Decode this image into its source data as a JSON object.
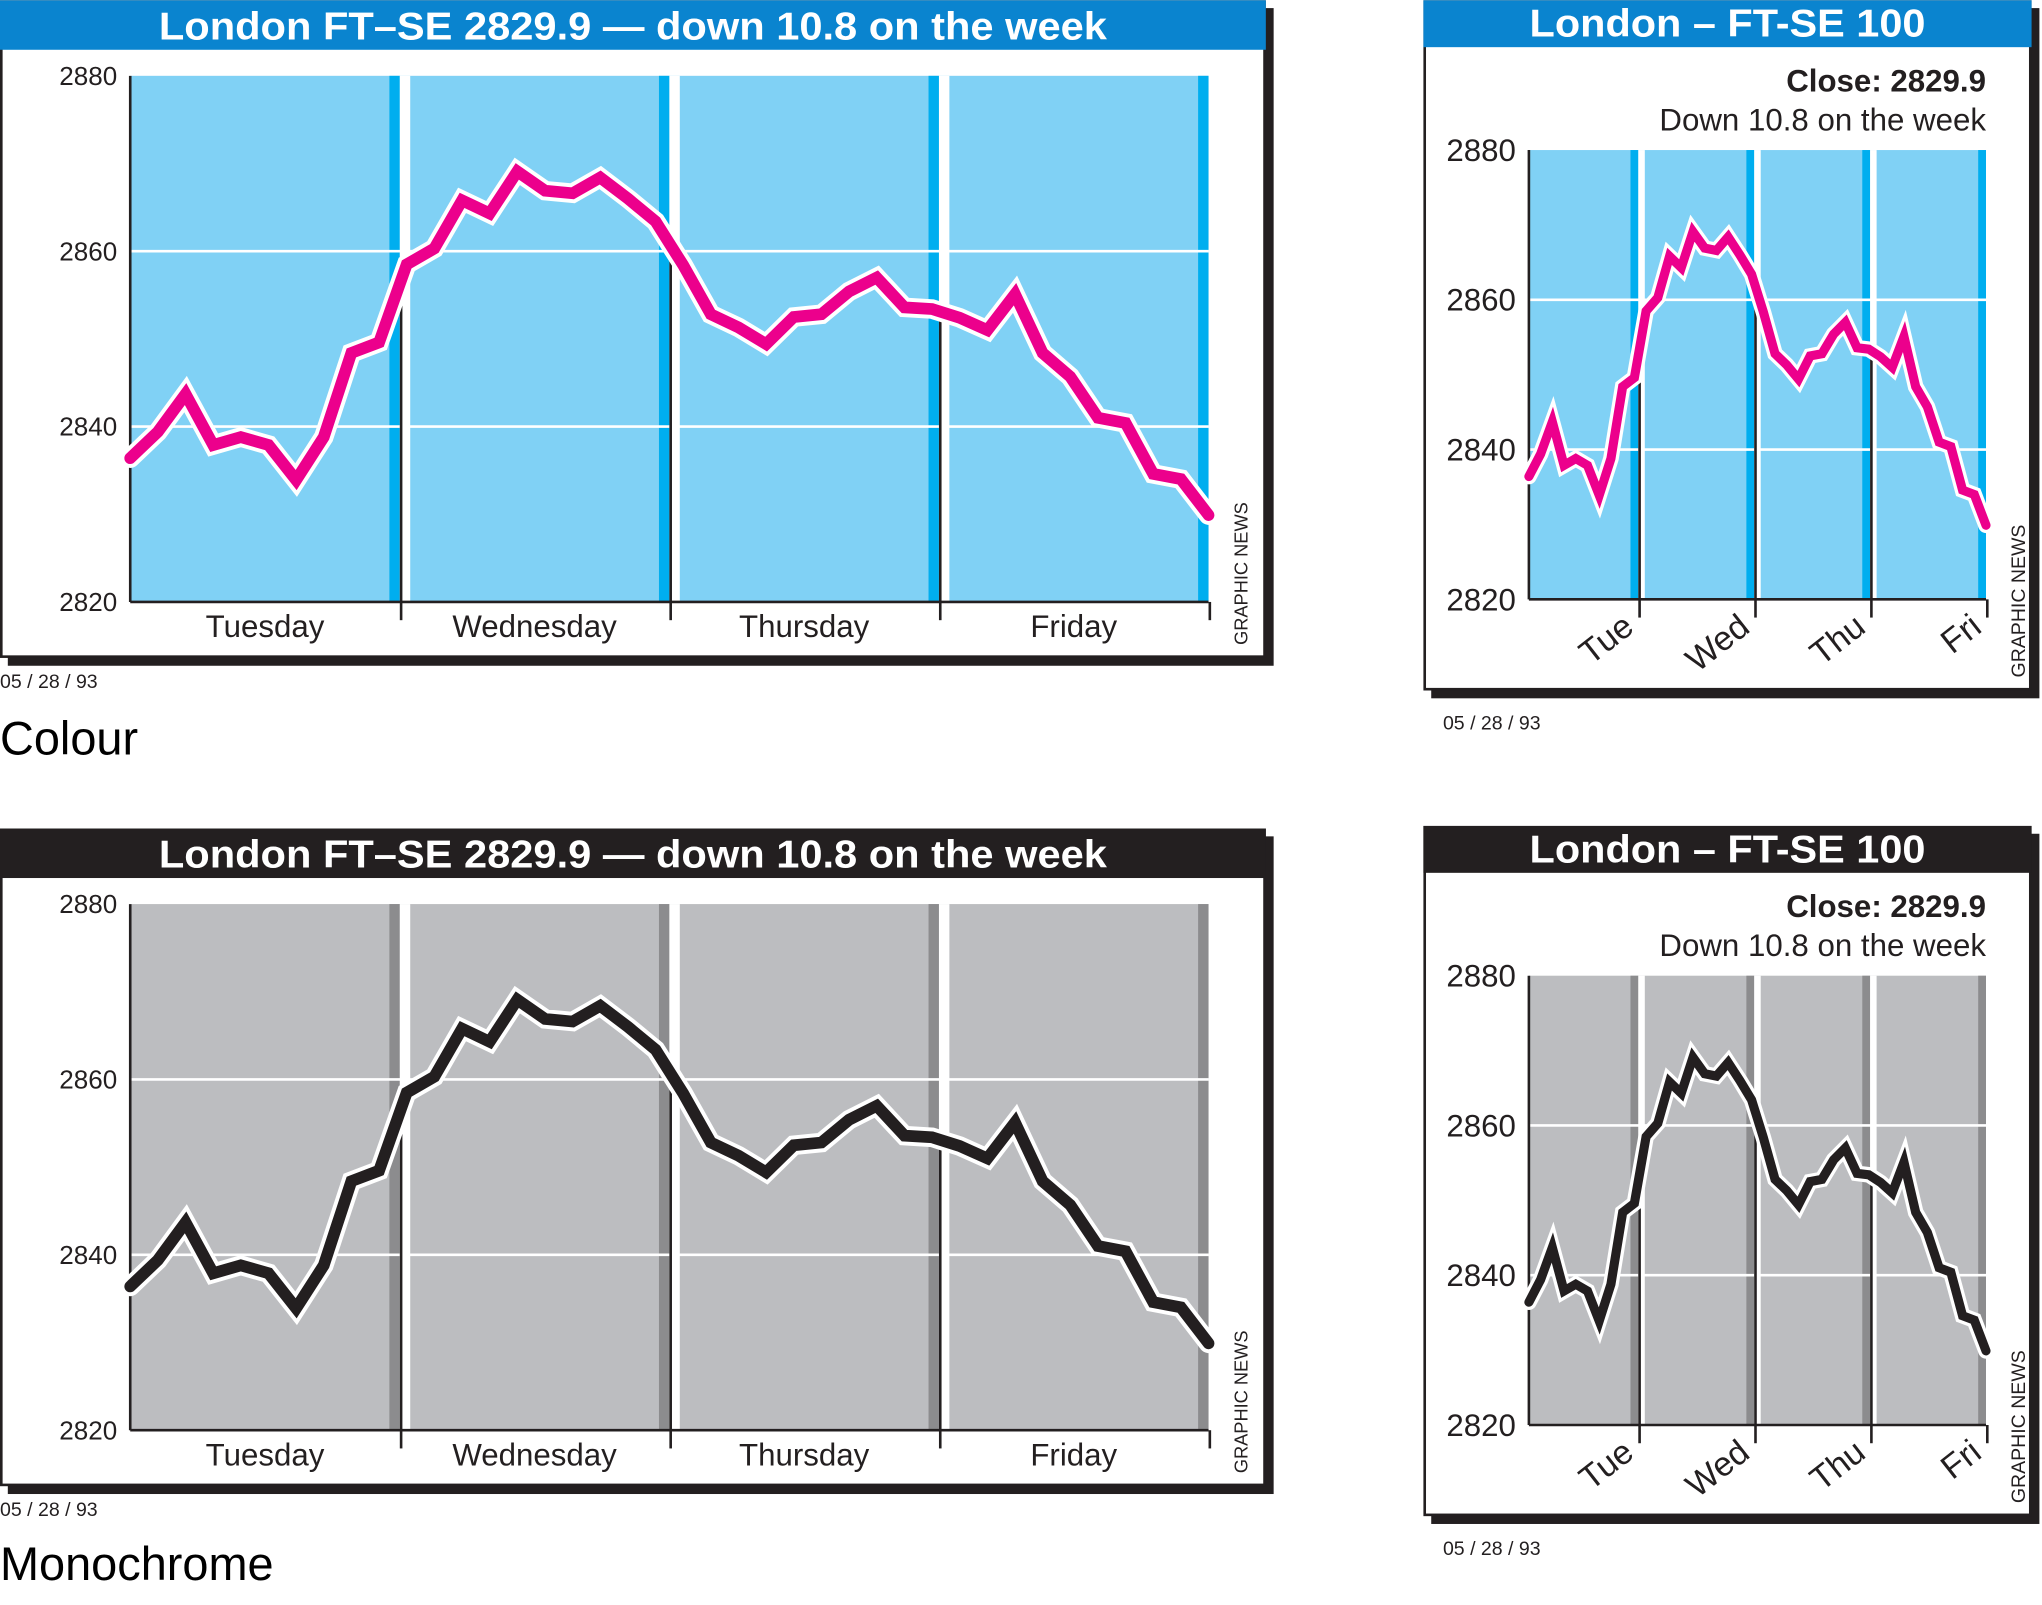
{
  "colors": {
    "colour_title_bar": "#0a84cf",
    "colour_plot_bg": "#80d1f5",
    "colour_stripe": "#00aeef",
    "colour_line": "#ec008c",
    "mono_title_bar": "#231f20",
    "mono_plot_bg": "#bcbdc0",
    "mono_stripe": "#8c8c8e",
    "mono_line": "#231f20"
  },
  "sections": [
    {
      "caption": "Colour"
    },
    {
      "caption": "Monochrome"
    }
  ],
  "chart_data": [
    {
      "type": "line",
      "variant": "large",
      "scheme": "colour",
      "title": "London FT–SE 2829.9 — down 10.8 on the week",
      "credit": "GRAPHIC NEWS",
      "date": "05 / 28 / 93",
      "yticks": [
        "2880",
        "2860",
        "2840",
        "2820"
      ],
      "ylim": [
        2820,
        2880
      ],
      "day_labels": [
        "Tuesday",
        "Wednesday",
        "Thursday",
        "Friday"
      ],
      "grid": true,
      "values": [
        2836.4,
        2839.4,
        2843.7,
        2837.9,
        2838.8,
        2837.9,
        2833.9,
        2838.8,
        2848.4,
        2849.6,
        2858.5,
        2860.3,
        2865.8,
        2864.3,
        2869.1,
        2866.9,
        2866.6,
        2868.4,
        2866.0,
        2863.4,
        2858.4,
        2852.8,
        2851.3,
        2849.4,
        2852.5,
        2852.8,
        2855.4,
        2857.0,
        2853.6,
        2853.4,
        2852.4,
        2851.0,
        2855.1,
        2848.4,
        2845.7,
        2841.0,
        2840.4,
        2834.6,
        2834.0,
        2829.9
      ]
    },
    {
      "type": "line",
      "variant": "small",
      "scheme": "colour",
      "title": "London – FT-SE 100",
      "subtitle_bold": "Close: 2829.9",
      "subtitle": "Down 10.8 on the week",
      "credit": "GRAPHIC NEWS",
      "date": "05 / 28 / 93",
      "yticks": [
        "2880",
        "2860",
        "2840",
        "2820"
      ],
      "ylim": [
        2820,
        2880
      ],
      "day_labels": [
        "Tue",
        "Wed",
        "Thu",
        "Fri"
      ],
      "grid": true,
      "values": [
        2836.4,
        2839.4,
        2843.7,
        2837.9,
        2838.8,
        2837.9,
        2833.9,
        2838.8,
        2848.4,
        2849.6,
        2858.5,
        2860.3,
        2865.8,
        2864.3,
        2869.1,
        2866.9,
        2866.6,
        2868.4,
        2866.0,
        2863.4,
        2858.4,
        2852.8,
        2851.3,
        2849.4,
        2852.5,
        2852.8,
        2855.4,
        2857.0,
        2853.6,
        2853.4,
        2852.4,
        2851.0,
        2855.1,
        2848.4,
        2845.7,
        2841.0,
        2840.4,
        2834.6,
        2834.0,
        2829.9
      ]
    },
    {
      "type": "line",
      "variant": "large",
      "scheme": "mono",
      "title": "London FT–SE 2829.9 — down 10.8 on the week",
      "credit": "GRAPHIC NEWS",
      "date": "05 / 28 / 93",
      "yticks": [
        "2880",
        "2860",
        "2840",
        "2820"
      ],
      "ylim": [
        2820,
        2880
      ],
      "day_labels": [
        "Tuesday",
        "Wednesday",
        "Thursday",
        "Friday"
      ],
      "grid": true,
      "values": [
        2836.4,
        2839.4,
        2843.7,
        2837.9,
        2838.8,
        2837.9,
        2833.9,
        2838.8,
        2848.4,
        2849.6,
        2858.5,
        2860.3,
        2865.8,
        2864.3,
        2869.1,
        2866.9,
        2866.6,
        2868.4,
        2866.0,
        2863.4,
        2858.4,
        2852.8,
        2851.3,
        2849.4,
        2852.5,
        2852.8,
        2855.4,
        2857.0,
        2853.6,
        2853.4,
        2852.4,
        2851.0,
        2855.1,
        2848.4,
        2845.7,
        2841.0,
        2840.4,
        2834.6,
        2834.0,
        2829.9
      ]
    },
    {
      "type": "line",
      "variant": "small",
      "scheme": "mono",
      "title": "London – FT-SE 100",
      "subtitle_bold": "Close: 2829.9",
      "subtitle": "Down 10.8 on the week",
      "credit": "GRAPHIC NEWS",
      "date": "05 / 28 / 93",
      "yticks": [
        "2880",
        "2860",
        "2840",
        "2820"
      ],
      "ylim": [
        2820,
        2880
      ],
      "day_labels": [
        "Tue",
        "Wed",
        "Thu",
        "Fri"
      ],
      "grid": true,
      "values": [
        2836.4,
        2839.4,
        2843.7,
        2837.9,
        2838.8,
        2837.9,
        2833.9,
        2838.8,
        2848.4,
        2849.6,
        2858.5,
        2860.3,
        2865.8,
        2864.3,
        2869.1,
        2866.9,
        2866.6,
        2868.4,
        2866.0,
        2863.4,
        2858.4,
        2852.8,
        2851.3,
        2849.4,
        2852.5,
        2852.8,
        2855.4,
        2857.0,
        2853.6,
        2853.4,
        2852.4,
        2851.0,
        2855.1,
        2848.4,
        2845.7,
        2841.0,
        2840.4,
        2834.6,
        2834.0,
        2829.9
      ]
    }
  ]
}
